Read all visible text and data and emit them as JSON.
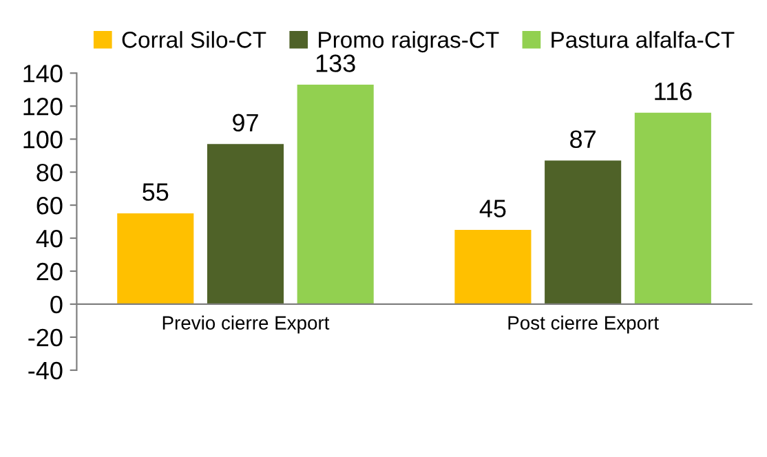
{
  "chart_data": {
    "type": "bar",
    "categories": [
      "Previo cierre Export",
      "Post cierre Export"
    ],
    "series": [
      {
        "name": "Corral Silo-CT",
        "color": "#ffc000",
        "values": [
          55,
          45
        ]
      },
      {
        "name": "Promo raigras-CT",
        "color": "#4f6228",
        "values": [
          97,
          87
        ]
      },
      {
        "name": "Pastura alfalfa-CT",
        "color": "#92d050",
        "values": [
          133,
          116
        ]
      }
    ],
    "ylim": [
      -40,
      140
    ],
    "yticks": [
      -40,
      -20,
      0,
      20,
      40,
      60,
      80,
      100,
      120,
      140
    ],
    "data_labels": true,
    "legend": "top",
    "grid": false
  }
}
